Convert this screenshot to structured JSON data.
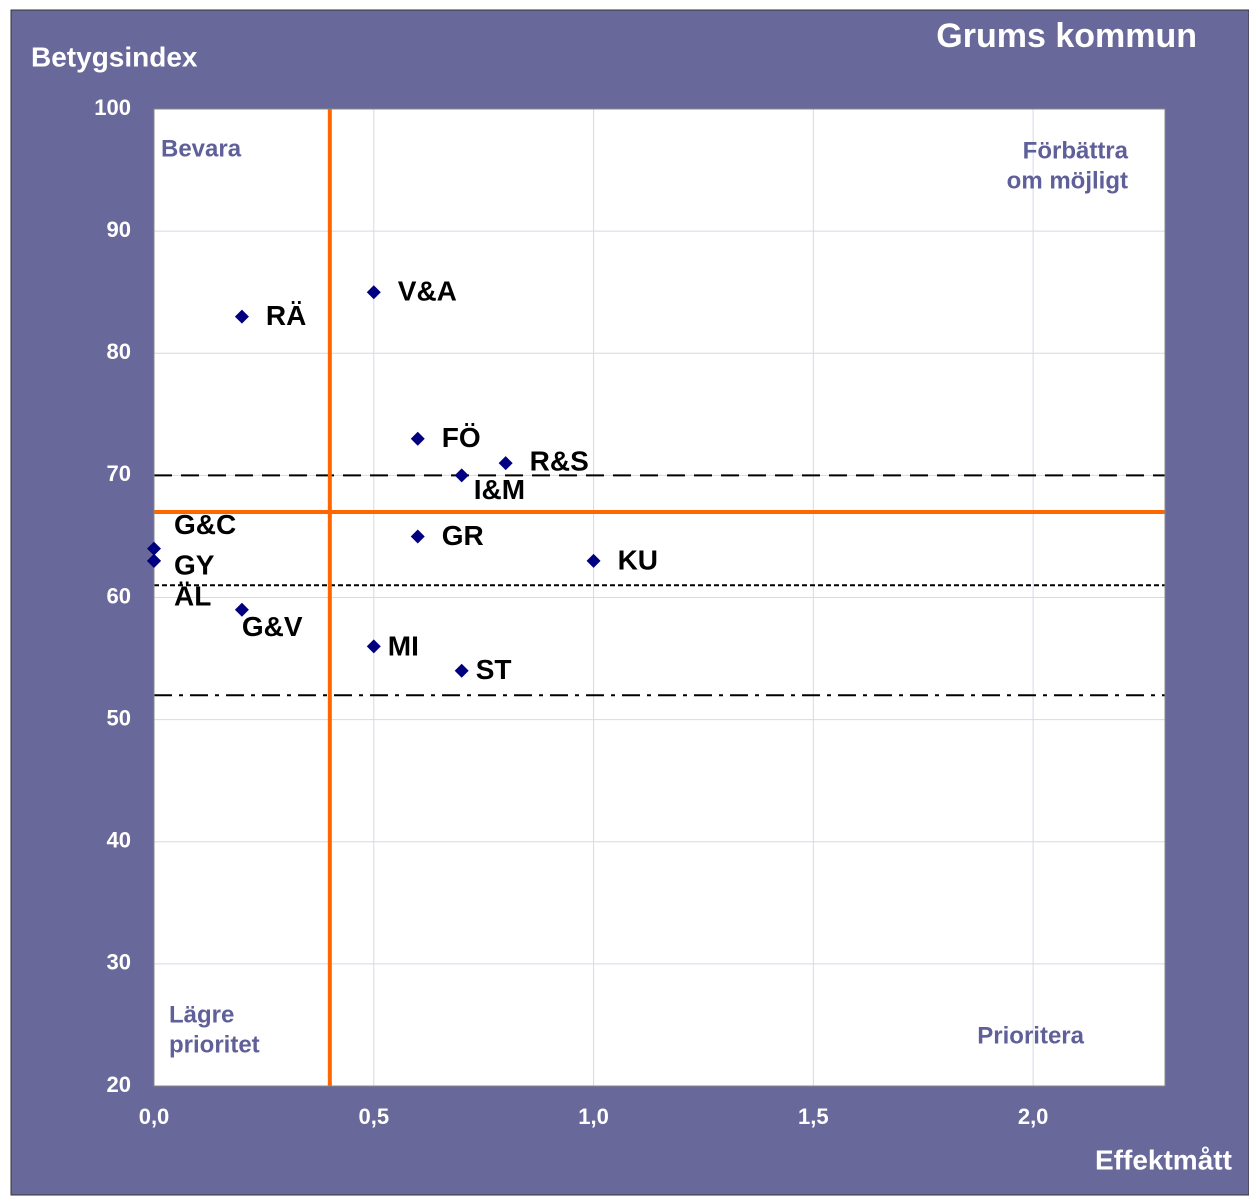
{
  "chart_data": {
    "type": "scatter",
    "title": "Grums kommun",
    "ylabel": "Betygsindex",
    "xlabel": "Effektmått",
    "xlim": [
      0,
      2.3
    ],
    "ylim": [
      20,
      100
    ],
    "xticks": [
      {
        "value": 0,
        "label": "0,0"
      },
      {
        "value": 0.5,
        "label": "0,5"
      },
      {
        "value": 1,
        "label": "1,0"
      },
      {
        "value": 1.5,
        "label": "1,5"
      },
      {
        "value": 2,
        "label": "2,0"
      }
    ],
    "yticks": [
      20,
      30,
      40,
      50,
      60,
      70,
      80,
      90,
      100
    ],
    "grid": true,
    "series": [
      {
        "color": "#000080",
        "labels": [
          "RÄ",
          "V&A",
          "FÖ",
          "R&S",
          "I&M",
          "GR",
          "KU",
          "G&C",
          "GY",
          "ÄL",
          "G&V",
          "MI",
          "ST"
        ],
        "x": [
          0.2,
          0.5,
          0.6,
          0.8,
          0.7,
          0.6,
          1.0,
          0,
          0,
          0,
          0.2,
          0.5,
          0.7
        ],
        "values": [
          83,
          85,
          73,
          71,
          70,
          65,
          63,
          64,
          63,
          63,
          59,
          56,
          54
        ]
      }
    ],
    "reference_lines": {
      "color": "#ff6600",
      "x": 0.4,
      "y": 67
    },
    "threshold_lines": [
      {
        "y": 70,
        "style": "dashed"
      },
      {
        "y": 61,
        "style": "dotted"
      },
      {
        "y": 52,
        "style": "dashdot"
      }
    ],
    "quadrant_labels": {
      "top_left": [
        "Bevara"
      ],
      "top_right": [
        "Förbättra",
        "om möjligt"
      ],
      "bottom_left": [
        "Lägre",
        "prioritet"
      ],
      "bottom_right": [
        "Prioritera"
      ]
    }
  }
}
